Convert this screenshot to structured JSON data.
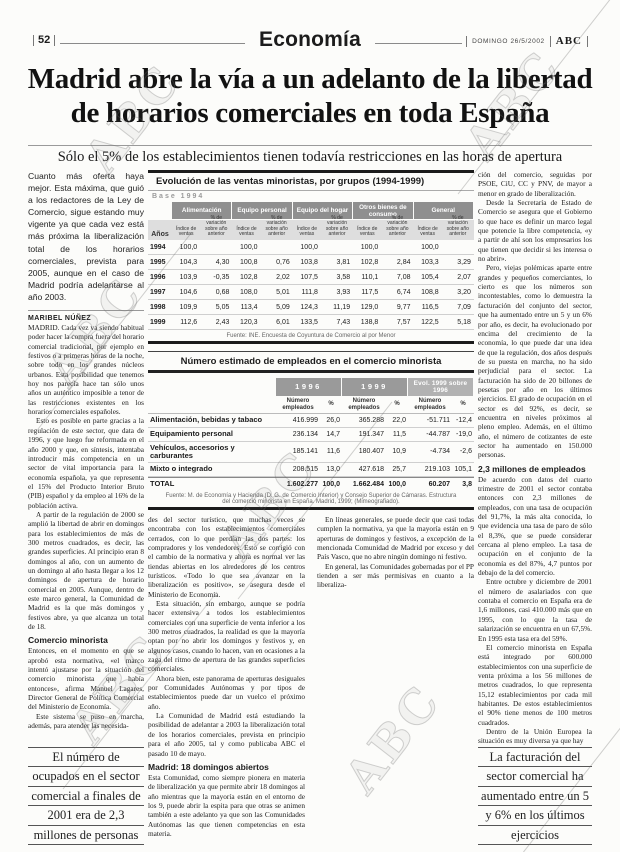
{
  "watermark_text": "ABC",
  "masthead": {
    "page_number": "52",
    "section": "Economía",
    "date": "DOMINGO 26/5/2002",
    "brand": "ABC"
  },
  "headline": {
    "line1": "Madrid abre la vía a un adelanto de la libertad",
    "line2": "de horarios comerciales en toda España",
    "subhead": "Sólo el 5% de los establecimientos tienen todavía restricciones en las horas de apertura"
  },
  "left_column": {
    "intro": "Cuanto más oferta haya mejor. Esta máxima, que guió a los redactores de la Ley de Comercio, sigue estando muy vigente ya que cada vez está más próxima la liberalización total de los horarios comerciales, prevista para 2005, aunque en el caso de Madrid podría adelantarse al año 2003.",
    "byline": "MARIBEL NÚÑEZ",
    "p1": "MADRID. Cada vez va siendo habitual poder hacer la compra fuera del horario comercial tradicional, por ejemplo en festivos o a primeras horas de la noche, sobre todo en los grandes núcleos urbanos. Esta posibilidad que tenemos hoy nos parecía hace tan sólo unos años un auténtico imposible a tenor de las restricciones existentes en los horarios comerciales españoles.",
    "p2": "Esto es posible en parte gracias a la regulación de este sector, que data de 1996, y que luego fue reformada en el año 2000 y que, en síntesis, intentaba introducir más competencia en un sector de vital importancia para la economía española, ya que representa el 15% del Producto Interior Bruto (PIB) español y da empleo al 16% de la población activa.",
    "p3": "A partir de la regulación de 2000 se amplió la libertad de abrir en domingos para los establecimientos de más de 300 metros cuadrados, es decir, las grandes superficies. Al principio eran 8 domingos al año, con un aumento de un domingo al año hasta llegar a los 12 domingos de apertura de horario comercial en 2005. Aunque, dentro de este marco general, la Comunidad de Madrid es la que más domingos y festivos abre, ya que alcanza un total de 18.",
    "subhead": "Comercio minorista",
    "p4": "Entonces, en el momento en que se aprobó esta normativa, «el marco intentó ajustarse por la situación del comercio minorista que había entonces», afirma Manuel Lagares, Director General de Política Comercial del Ministerio de Economía.",
    "p5": "Este sistema se puso en marcha, además, para atender las necesida-",
    "quote": [
      "El número de",
      "ocupados en el sector",
      "comercial a finales de",
      "2001 era de 2,3",
      "millones de personas"
    ]
  },
  "table1": {
    "title": "Evolución de las ventas minoristas, por grupos (1994-1999)",
    "base_label": "Base 1994",
    "years_header": "Años",
    "groups": [
      "Alimentación",
      "Equipo personal",
      "Equipo del hogar",
      "Otros bienes de consumo",
      "General"
    ],
    "subcol_index": "Índice de ventas",
    "subcol_var": "% de variación sobre año anterior",
    "rows": [
      {
        "year": "1994",
        "values": [
          "100,0",
          "",
          "100,0",
          "",
          "100,0",
          "",
          "100,0",
          "",
          "100,0",
          ""
        ]
      },
      {
        "year": "1995",
        "values": [
          "104,3",
          "4,30",
          "100,8",
          "0,76",
          "103,8",
          "3,81",
          "102,8",
          "2,84",
          "103,3",
          "3,29"
        ]
      },
      {
        "year": "1996",
        "values": [
          "103,9",
          "-0,35",
          "102,8",
          "2,02",
          "107,5",
          "3,58",
          "110,1",
          "7,08",
          "105,4",
          "2,07"
        ]
      },
      {
        "year": "1997",
        "values": [
          "104,6",
          "0,68",
          "108,0",
          "5,01",
          "111,8",
          "3,93",
          "117,5",
          "6,74",
          "108,8",
          "3,20"
        ]
      },
      {
        "year": "1998",
        "values": [
          "109,9",
          "5,05",
          "113,4",
          "5,09",
          "124,3",
          "11,19",
          "129,0",
          "9,77",
          "116,5",
          "7,09"
        ]
      },
      {
        "year": "1999",
        "values": [
          "112,6",
          "2,43",
          "120,3",
          "6,01",
          "133,5",
          "7,43",
          "138,8",
          "7,57",
          "122,5",
          "5,18"
        ]
      }
    ],
    "source": "Fuente: INE. Encuesta de Coyuntura de Comercio al por Menor"
  },
  "table2": {
    "title": "Número estimado de empleados en el comercio minorista",
    "col_groups": [
      "1996",
      "1999",
      "Evol. 1999 sobre 1996"
    ],
    "subcol_num": "Número empleados",
    "subcol_pct": "%",
    "rows": [
      {
        "label": "Alimentación, bebidas y tabaco",
        "values": [
          "416.999",
          "26,0",
          "365.288",
          "22,0",
          "-51.711",
          "-12,4"
        ],
        "is_total": false
      },
      {
        "label": "Equipamiento personal",
        "values": [
          "236.134",
          "14,7",
          "191.347",
          "11,5",
          "-44.787",
          "-19,0"
        ],
        "is_total": false
      },
      {
        "label": "Vehículos, accesorios y carburantes",
        "values": [
          "185.141",
          "11,6",
          "180.407",
          "10,9",
          "-4.734",
          "-2,6"
        ],
        "is_total": false
      },
      {
        "label": "Mixto o integrado",
        "values": [
          "208.515",
          "13,0",
          "427.618",
          "25,7",
          "219.103",
          "105,1"
        ],
        "is_total": false
      },
      {
        "label": "TOTAL",
        "values": [
          "1.602.277",
          "100,0",
          "1.662.484",
          "100,0",
          "60.207",
          "3,8"
        ],
        "is_total": true
      }
    ],
    "source": "Fuente: M. de Economía y Hacienda (D. G. de Comercio Interior) y Consejo Superior de Cámaras. Estructura del comercio minorista en España. Madrid, 1999; (Mimeografiado)."
  },
  "center_columns": {
    "pA1": "des del sector turístico, que muchas veces se encontraba con los establecimientos comerciales cerrados, con lo que perdían las dos partes: los compradores y los vendedores. Esto se corrigió con el cambio de la normativa y ahora es normal ver las tiendas abiertas en los alrededores de los centros turísticos. «Todo lo que sea avanzar en la liberalización es positivo», se asegura desde el Ministerio de Economía.",
    "pA2": "Esta situación, sin embargo, aunque se podría hacer extensiva a todos los establecimientos comerciales con una superficie de venta inferior a los 300 metros cuadrados, la realidad es que la mayoría optan por no abrir los domingos y festivos y, en algunos casos, cuando lo hacen, van en ocasiones a la zaga del ritmo de apertura de las grandes superficies comerciales.",
    "pA3": "Ahora bien, este panorama de aperturas desiguales por Comunidades Autónomas y por tipos de establecimientos puede dar un vuelco el próximo año.",
    "pB1": "La Comunidad de Madrid está estudiando la posibilidad de adelantar a 2003 la liberalización total de los horarios comerciales, prevista en principio para el año 2005, tal y como publicaba ABC el pasado 10 de mayo.",
    "subhead": "Madrid: 18 domingos abiertos",
    "pB2": "Esta Comunidad, como siempre pionera en materia de liberalización ya que permite abrir 18 domingos al año mientras que la mayoría están en el entorno de los 9, puede abrir la espita para que otras se animen también a este adelanto ya que son las Comunidades Autónomas las que tienen competencias en esta materia.",
    "pB3": "En líneas generales, se puede decir que casi todas cumplen la normativa, ya que la mayoría están en 9 aperturas de domingos y festivos, a excepción de la mencionada Comunidad de Madrid por exceso y del País Vasco, que no abre ningún domingo ni festivo.",
    "pB4": "En general, las Comunidades gobernadas por el PP tienden a ser más permisivas en cuanto a la liberaliza-"
  },
  "right_column": {
    "p1": "ción del comercio, seguidas por PSOE, CiU, CC y PNV, de mayor a menor en grado de liberalización.",
    "p2": "Desde la Secretaría de Estado de Comercio se asegura que el Gobierno lo que hace es definir un marco legal que potencie la libre competencia, «y a partir de ahí son los empresarios los que tienen que decidir si les interesa o no abrir».",
    "p3": "Pero, viejas polémicas aparte entre grandes y pequeños comerciantes, lo cierto es que los números son incontestables, como lo demuestra la facturación del conjunto del sector, que ha aumentado entre un 5 y un 6% por año, es decir, ha evolucionado por encima del crecimiento de la economía, lo que puede dar una idea de que la regulación, dos años después de su puesta en marcha, no ha sido perjudicial para el sector. La facturación ha sido de 20 billones de pesetas por año en los últimos ejercicios. El grado de ocupación en el sector es del 92%, es decir, se encuentra en niveles próximos al pleno empleo. Además, en el último año, el número de cotizantes de este sector ha aumentado en 150.000 personas.",
    "subhead": "2,3 millones de empleados",
    "p4": "De acuerdo con datos del cuarto trimestre de 2001 el sector contaba entonces con 2,3 millones de empleados, con una tasa de ocupación del 91,7%, la más alta conocida, lo que evidencia una tasa de paro de sólo el 8,3%, que se puede considerar cercana al pleno empleo. La tasa de ocupación en el conjunto de la economía es del 87%, 4,7 puntos por debajo de la del comercio.",
    "p5": "Entre octubre y diciembre de 2001 el número de asalariados con que contaba el comercio en España era de 1,6 millones, casi 410.000 más que en 1995, con lo que la tasa de salarización se encuentra en un 67,5%. En 1995 esta tasa era del 59%.",
    "p6": "El comercio minorista en España está integrado por 600.000 establecimientos con una superficie de venta próxima a los 56 millones de metros cuadrados, lo que representa 15,12 establecimientos por cada mil habitantes. De estos establecimientos el 90% tiene menos de 100 metros cuadrados.",
    "p7": "Dentro de la Unión Europea la situación es muy diversa ya que hay",
    "quote": [
      "La facturación del",
      "sector comercial ha",
      "aumentado entre un 5",
      "y 6% en los últimos",
      "ejercicios"
    ]
  }
}
